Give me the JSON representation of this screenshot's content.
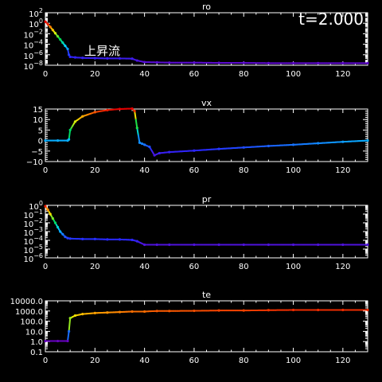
{
  "time_label": "t=2.000",
  "annotation": "上昇流",
  "chart_data": [
    {
      "type": "line",
      "title": "ro",
      "scale": "log",
      "xlim": [
        0,
        130
      ],
      "ylim": [
        -8,
        2
      ],
      "x_ticks": [
        0,
        20,
        40,
        60,
        80,
        100,
        120
      ],
      "y_ticks": [
        {
          "v": 2,
          "base": "10",
          "exp": "2"
        },
        {
          "v": 0,
          "base": "10",
          "exp": "0"
        },
        {
          "v": -2,
          "base": "10",
          "exp": "−2"
        },
        {
          "v": -4,
          "base": "10",
          "exp": "−4"
        },
        {
          "v": -6,
          "base": "10",
          "exp": "−6"
        },
        {
          "v": -8,
          "base": "10",
          "exp": "−8"
        }
      ],
      "color_mode": "value",
      "crange": [
        -8,
        0
      ],
      "x": [
        0,
        1,
        2,
        3,
        4,
        5,
        6,
        7,
        8,
        9,
        9.5,
        10,
        12,
        15,
        20,
        25,
        30,
        35,
        37,
        40,
        45,
        50,
        60,
        70,
        80,
        90,
        100,
        110,
        120,
        130
      ],
      "y": [
        0.3,
        -0.2,
        -0.7,
        -1.3,
        -1.9,
        -2.5,
        -3.1,
        -3.7,
        -4.3,
        -4.9,
        -6.0,
        -6.4,
        -6.5,
        -6.6,
        -6.65,
        -6.7,
        -6.7,
        -6.75,
        -7.1,
        -7.4,
        -7.45,
        -7.5,
        -7.5,
        -7.55,
        -7.55,
        -7.6,
        -7.6,
        -7.6,
        -7.6,
        -7.6
      ]
    },
    {
      "type": "line",
      "title": "vx",
      "scale": "linear",
      "xlim": [
        0,
        130
      ],
      "ylim": [
        -10,
        15
      ],
      "x_ticks": [
        0,
        20,
        40,
        60,
        80,
        100,
        120
      ],
      "y_ticks": [
        {
          "v": 15,
          "label": "15"
        },
        {
          "v": 10,
          "label": "10"
        },
        {
          "v": 5,
          "label": "5"
        },
        {
          "v": 0,
          "label": "0"
        },
        {
          "v": -5,
          "label": "−5"
        },
        {
          "v": -10,
          "label": "−10"
        }
      ],
      "color_mode": "value",
      "crange": [
        -10,
        15
      ],
      "x": [
        0,
        5,
        9,
        9.5,
        10,
        12,
        15,
        20,
        25,
        30,
        35,
        36,
        37,
        38,
        39,
        40,
        42,
        44,
        46,
        50,
        60,
        70,
        80,
        90,
        100,
        110,
        120,
        130
      ],
      "y": [
        0,
        0,
        0,
        0.5,
        5,
        9,
        11.5,
        13.5,
        14.5,
        15,
        15.2,
        14,
        6,
        -1,
        -1.5,
        -2,
        -3,
        -7,
        -6,
        -5.5,
        -4.8,
        -4,
        -3.3,
        -2.6,
        -2,
        -1.3,
        -0.6,
        0
      ]
    },
    {
      "type": "line",
      "title": "pr",
      "scale": "log",
      "xlim": [
        0,
        130
      ],
      "ylim": [
        -6,
        0
      ],
      "x_ticks": [
        0,
        20,
        40,
        60,
        80,
        100,
        120
      ],
      "y_ticks": [
        {
          "v": 0,
          "base": "10",
          "exp": "0"
        },
        {
          "v": -1,
          "base": "10",
          "exp": "−1"
        },
        {
          "v": -2,
          "base": "10",
          "exp": "−2"
        },
        {
          "v": -3,
          "base": "10",
          "exp": "−3"
        },
        {
          "v": -4,
          "base": "10",
          "exp": "−4"
        },
        {
          "v": -5,
          "base": "10",
          "exp": "−5"
        },
        {
          "v": -6,
          "base": "10",
          "exp": "−6"
        }
      ],
      "color_mode": "value",
      "crange": [
        -5,
        0
      ],
      "x": [
        0,
        1,
        2,
        3,
        4,
        5,
        6,
        7,
        8,
        9,
        10,
        15,
        20,
        25,
        30,
        35,
        37,
        40,
        45,
        50,
        60,
        70,
        80,
        90,
        100,
        110,
        120,
        130
      ],
      "y": [
        -0.1,
        -0.5,
        -1,
        -1.5,
        -2,
        -2.5,
        -3,
        -3.3,
        -3.6,
        -3.75,
        -3.8,
        -3.85,
        -3.85,
        -3.9,
        -3.9,
        -3.95,
        -4.1,
        -4.5,
        -4.5,
        -4.5,
        -4.5,
        -4.5,
        -4.5,
        -4.5,
        -4.5,
        -4.5,
        -4.5,
        -4.5
      ]
    },
    {
      "type": "line",
      "title": "te",
      "scale": "log",
      "xlim": [
        0,
        130
      ],
      "ylim": [
        -1,
        4
      ],
      "x_ticks": [
        0,
        20,
        40,
        60,
        80,
        100,
        120
      ],
      "y_ticks": [
        {
          "v": 4,
          "label": "10000.0"
        },
        {
          "v": 3,
          "label": "1000.0"
        },
        {
          "v": 2,
          "label": "100.0"
        },
        {
          "v": 1,
          "label": "10.0"
        },
        {
          "v": 0,
          "label": "1.0"
        },
        {
          "v": -1,
          "label": "0.1"
        }
      ],
      "color_mode": "value",
      "crange": [
        0,
        3.2
      ],
      "x": [
        0,
        5,
        9,
        9.5,
        10,
        12,
        15,
        20,
        25,
        30,
        35,
        40,
        45,
        50,
        60,
        70,
        80,
        90,
        100,
        110,
        120,
        130
      ],
      "y": [
        0.05,
        0.05,
        0.05,
        1.0,
        2.3,
        2.55,
        2.7,
        2.8,
        2.85,
        2.9,
        2.95,
        2.95,
        3.0,
        3.0,
        3.02,
        3.05,
        3.05,
        3.08,
        3.1,
        3.1,
        3.1,
        3.1
      ]
    }
  ]
}
